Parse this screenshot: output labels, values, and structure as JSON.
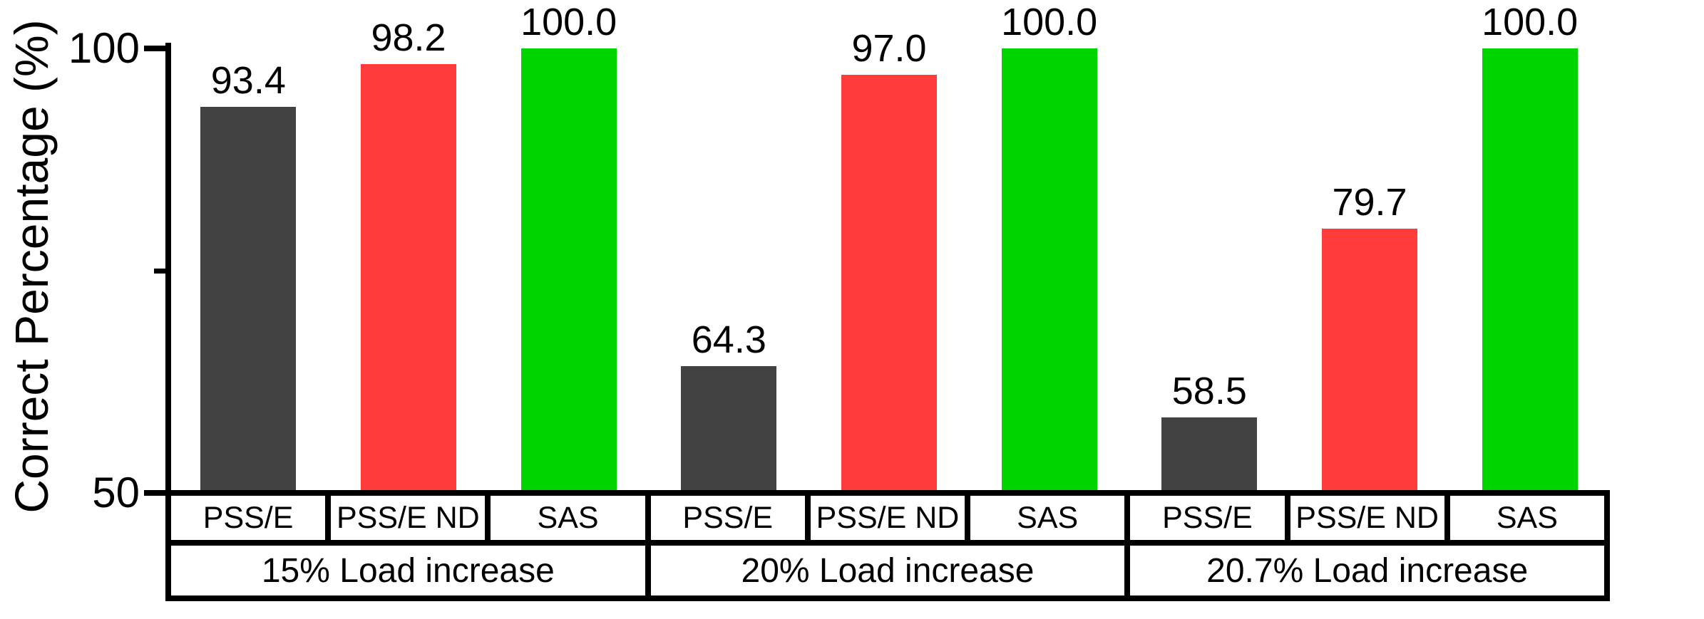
{
  "chart_data": {
    "type": "bar",
    "title": "",
    "xlabel": "",
    "ylabel": "Correct Percentage (%)",
    "ylim": [
      50,
      100
    ],
    "grid": false,
    "legend_position": "none",
    "bar_value_labels_shown": true,
    "y_major_ticks": [
      {
        "value": 100,
        "label": "100"
      },
      {
        "value": 50,
        "label": "50"
      }
    ],
    "y_minor_ticks": [
      {
        "value": 75
      }
    ],
    "categories": [
      "15% Load increase",
      "20% Load increase",
      "20.7% Load increase"
    ],
    "series": [
      {
        "name": "PSS/E",
        "color": "#424242",
        "values": [
          93.4,
          64.3,
          58.5
        ],
        "value_labels": [
          "93.4",
          "64.3",
          "58.5"
        ]
      },
      {
        "name": "PSS/E ND",
        "color": "#FF3B3B",
        "values": [
          98.2,
          97.0,
          79.7
        ],
        "value_labels": [
          "98.2",
          "97.0",
          "79.7"
        ]
      },
      {
        "name": "SAS",
        "color": "#00D400",
        "values": [
          100.0,
          100.0,
          100.0
        ],
        "value_labels": [
          "100.0",
          "100.0",
          "100.0"
        ]
      }
    ],
    "colors": {
      "axis": "#000000",
      "text": "#000000",
      "background": "#FFFFFF"
    }
  }
}
